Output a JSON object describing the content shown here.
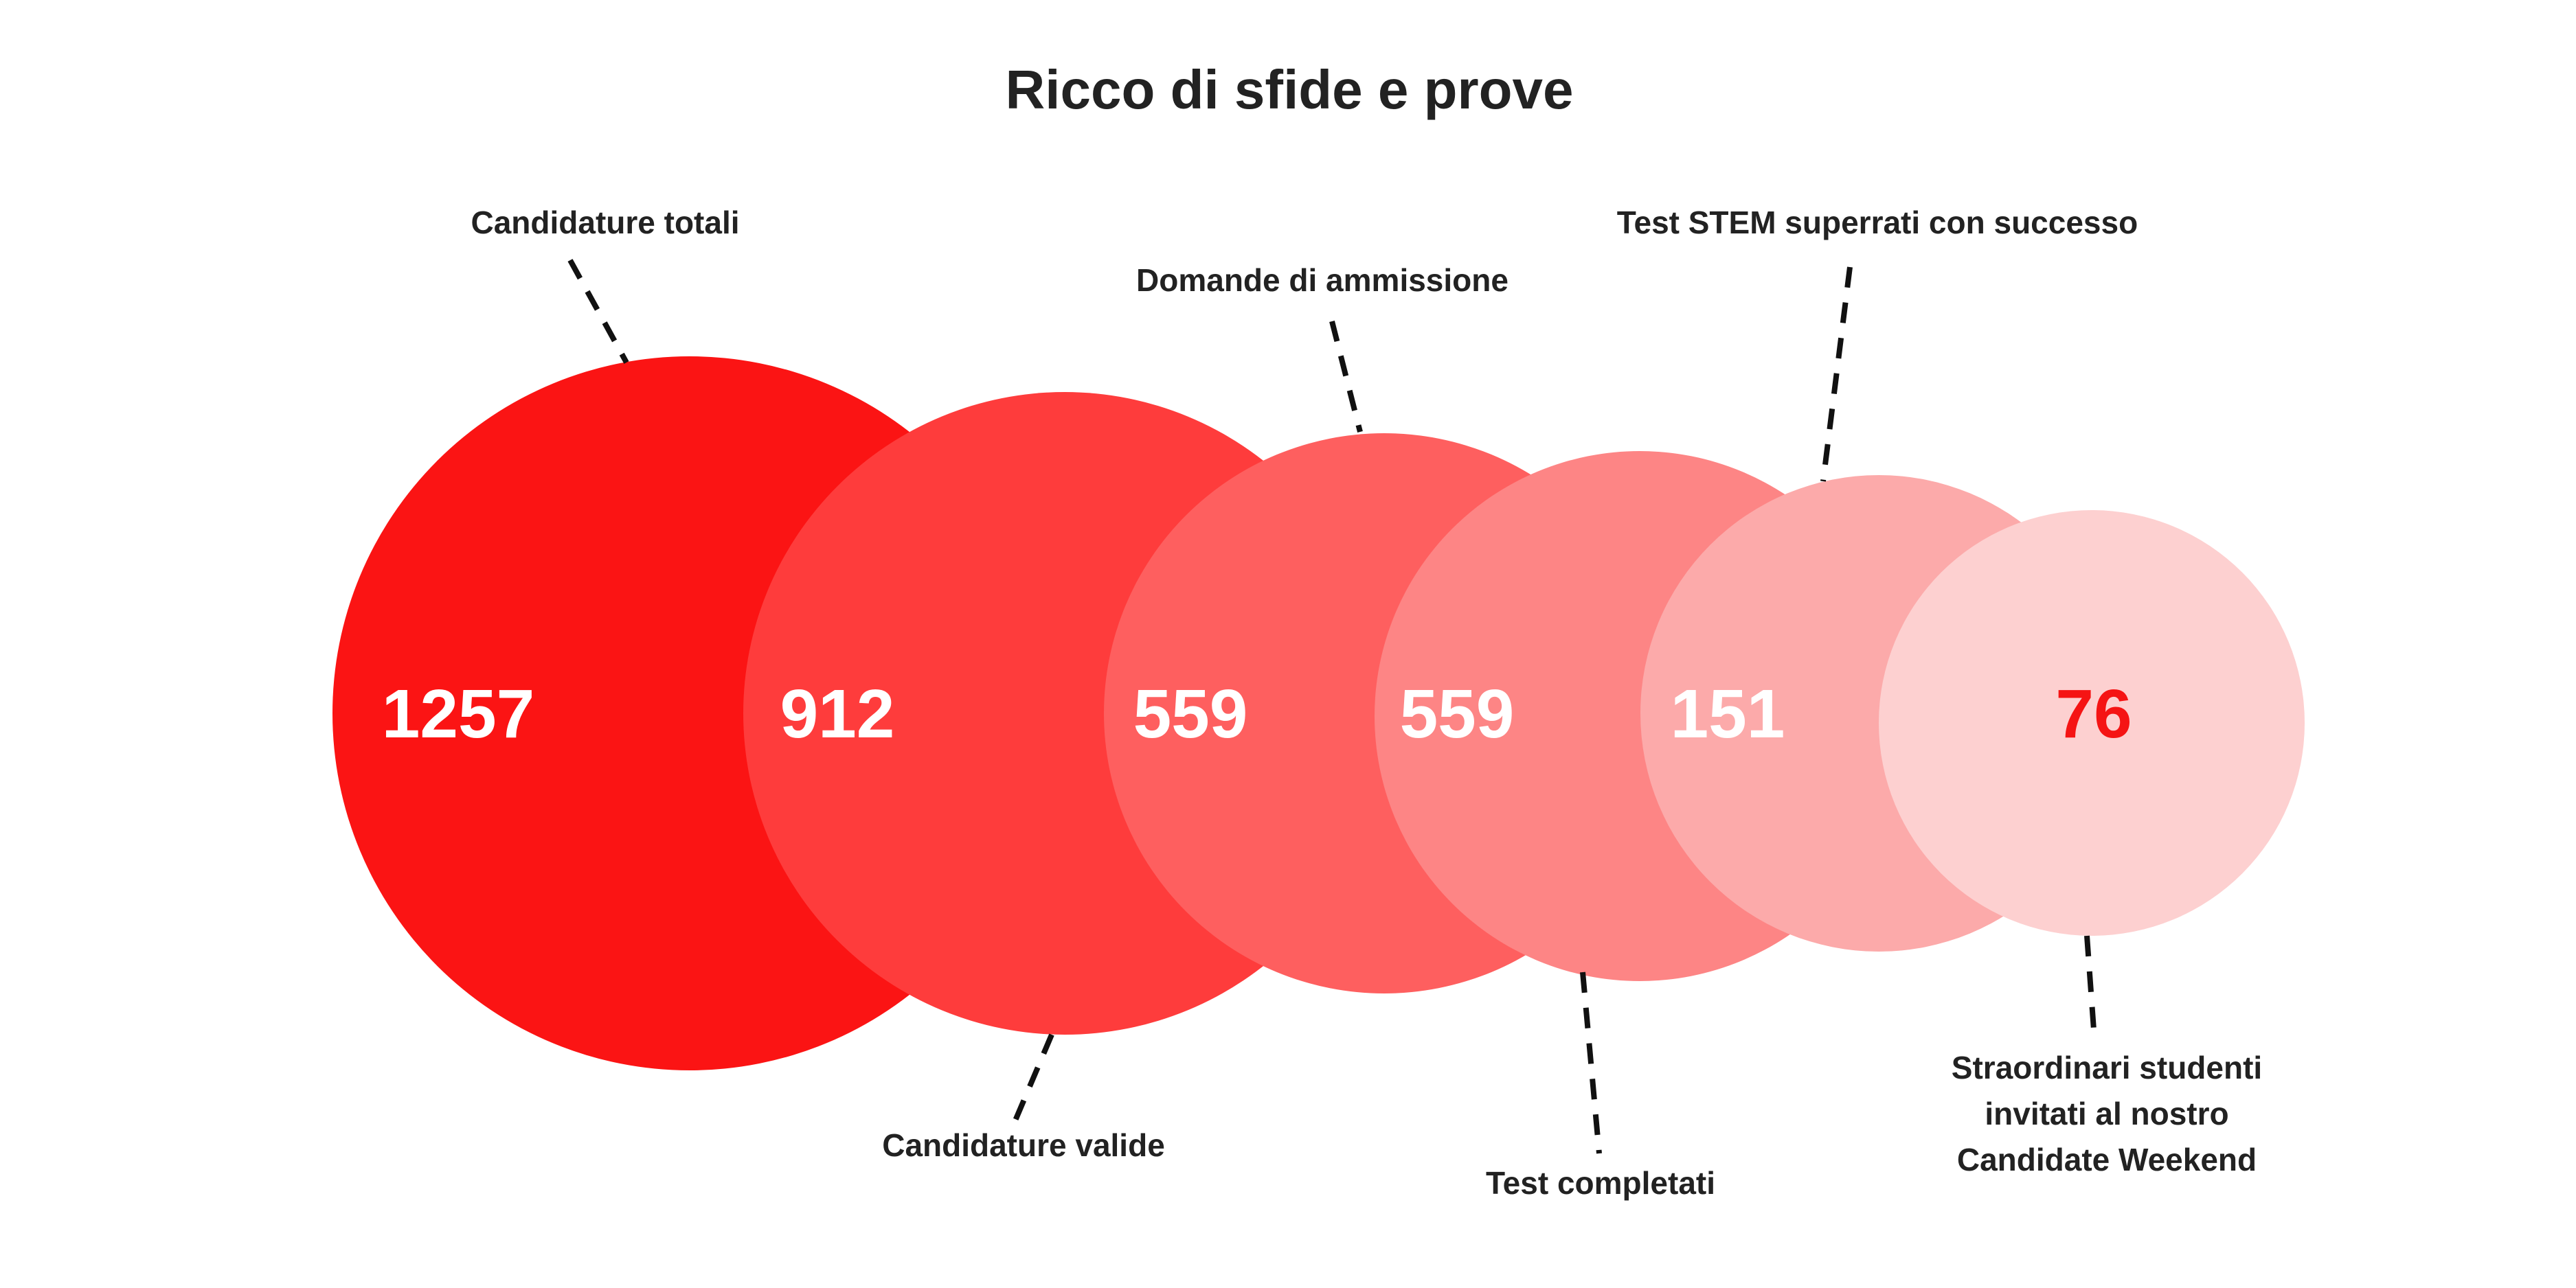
{
  "chart_data": {
    "type": "bubble",
    "title": "Ricco di sfide e prove",
    "categories": [
      "Candidature totali",
      "Candidature valide",
      "Domande di ammissione",
      "Test completati",
      "Test STEM superrati con successo",
      "Straordinari studenti invitati al nostro Candidate Weekend"
    ],
    "values": [
      1257,
      912,
      559,
      559,
      151,
      76
    ],
    "value_labels": [
      "1257",
      "912",
      "559",
      "559",
      "151",
      "76"
    ],
    "colors": [
      "#fb1414",
      "#fe3c3c",
      "#fe5f5f",
      "#fd8585",
      "#fcaaaa",
      "#fdd0d0"
    ],
    "value_label_colors": [
      "#ffffff",
      "#ffffff",
      "#ffffff",
      "#ffffff",
      "#ffffff",
      "#f51414"
    ],
    "last_label": {
      "line1": "Straordinari studenti",
      "line2": "invitati al nostro",
      "highlight": "Candidate Weekend",
      "highlight_color": "#f51414"
    }
  }
}
